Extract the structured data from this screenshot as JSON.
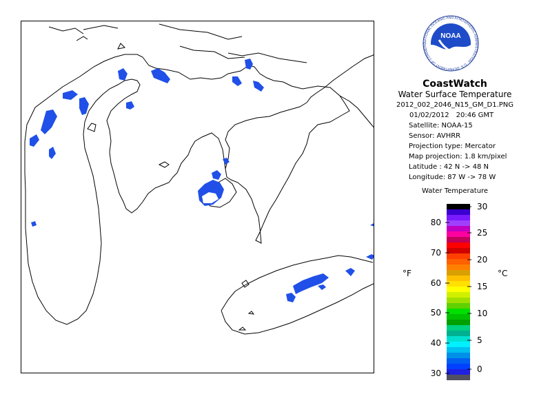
{
  "logo": {
    "text": "NOAA",
    "ring_text": "NATIONAL OCEANIC AND ATMOSPHERIC ADMINISTRATION · U.S. DEPARTMENT OF COMMERCE"
  },
  "header": {
    "brand": "CoastWatch",
    "product": "Water Surface Temperature",
    "filename": "2012_002_2046_N15_GM_D1.PNG"
  },
  "meta": {
    "date": "01/02/2012",
    "time": "20:46 GMT",
    "satellite": "Satellite: NOAA-15",
    "sensor": "Sensor: AVHRR",
    "projection_type": "Projection type:  Mercator",
    "map_projection": "Map projection: 1.8 km/pixel",
    "latitude": "Latitude : 42 N -> 48 N",
    "longitude": "Longitude: 87 W -> 78 W"
  },
  "legend": {
    "title": "Water Temperature",
    "unit_f": "°F",
    "unit_c": "°C",
    "f_ticks": [
      "80",
      "70",
      "60",
      "50",
      "40",
      "30"
    ],
    "c_ticks": [
      "30",
      "25",
      "20",
      "15",
      "10",
      "5",
      "0"
    ],
    "colors": [
      "#000000",
      "#3a00d0",
      "#7a1aff",
      "#a040ff",
      "#c000c0",
      "#ff00a0",
      "#c0005a",
      "#ff0000",
      "#d00000",
      "#ff4000",
      "#ff6000",
      "#ff8000",
      "#d8a000",
      "#ffc000",
      "#ffe000",
      "#ffff00",
      "#d0f000",
      "#a0e000",
      "#60d000",
      "#00e000",
      "#00c000",
      "#00a000",
      "#00d080",
      "#00b090",
      "#00e0d0",
      "#00f0ff",
      "#00c0f0",
      "#0090e8",
      "#0060f0",
      "#0040ff",
      "#2020e0",
      "#505060"
    ]
  },
  "map": {
    "land_color": "#ffffff",
    "coast_color": "#000000",
    "cloud_free_water_color": "#2050e8"
  }
}
